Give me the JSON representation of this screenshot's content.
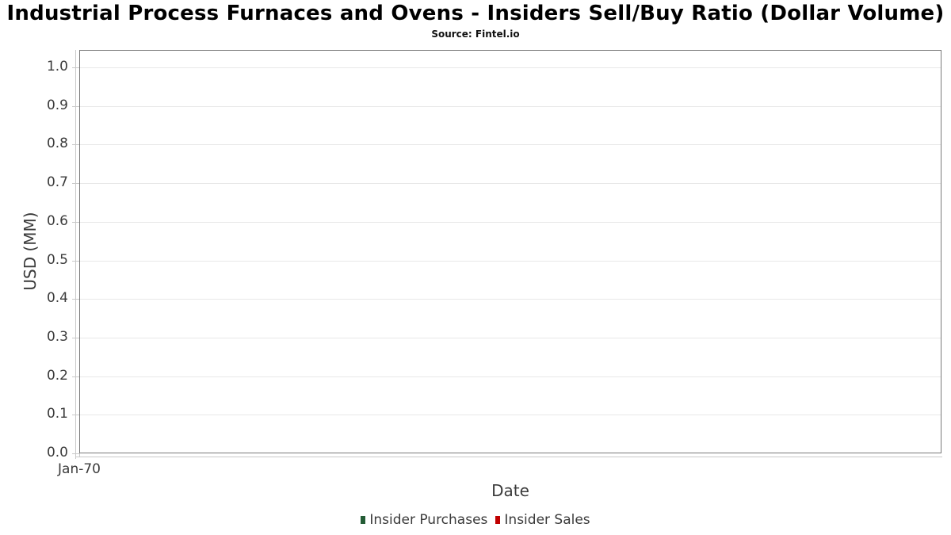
{
  "title": "Industrial Process Furnaces and Ovens - Insiders Sell/Buy Ratio (Dollar Volume)",
  "subtitle": "Source: Fintel.io",
  "chart_data": {
    "type": "bar",
    "title": "Industrial Process Furnaces and Ovens - Insiders Sell/Buy Ratio (Dollar Volume)",
    "subtitle": "Source: Fintel.io",
    "xlabel": "Date",
    "ylabel": "USD (MM)",
    "x_ticks": [
      "Jan-70"
    ],
    "y_ticks": [
      "0.0",
      "0.1",
      "0.2",
      "0.3",
      "0.4",
      "0.5",
      "0.6",
      "0.7",
      "0.8",
      "0.9",
      "1.0"
    ],
    "ylim": [
      0,
      1.05
    ],
    "grid": true,
    "legend_position": "bottom",
    "series": [
      {
        "name": "Insider Purchases",
        "color": "#235c35",
        "values": []
      },
      {
        "name": "Insider Sales",
        "color": "#c00000",
        "values": []
      }
    ]
  },
  "colors": {
    "plot_border": "#7a7a7a",
    "gridline": "#e8e8e8",
    "axis_line": "#c9c9c9",
    "tick_text": "#3b3b3b",
    "title_text": "#000000"
  }
}
